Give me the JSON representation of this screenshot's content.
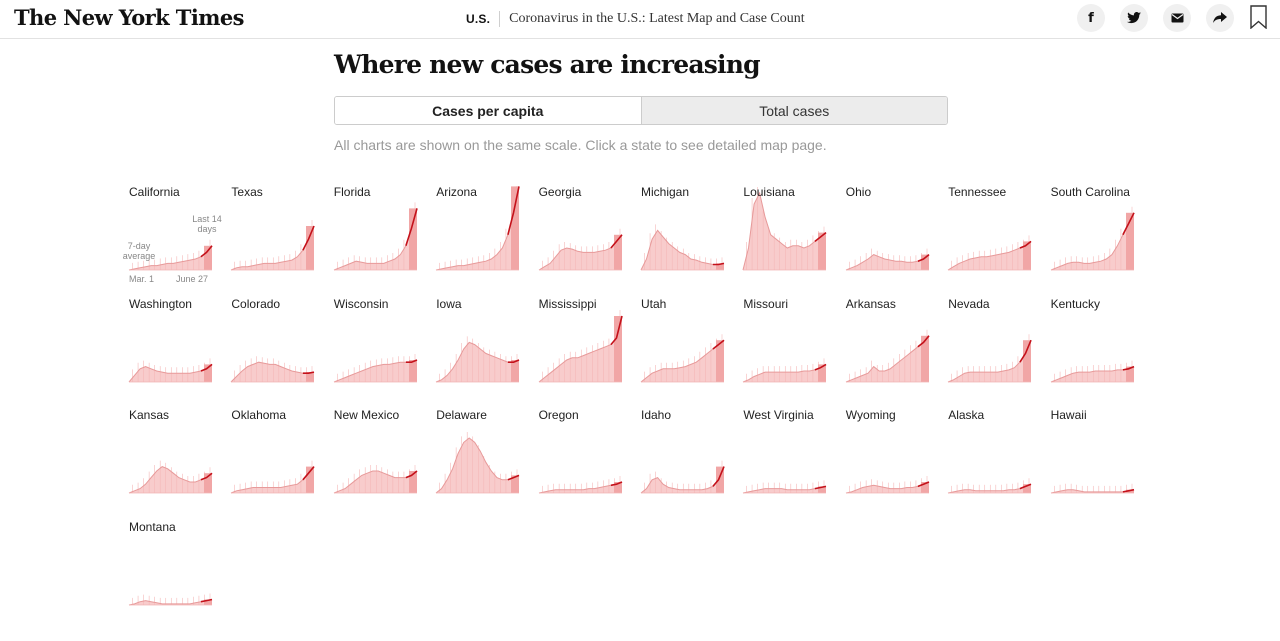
{
  "header": {
    "logo": "The New York Times",
    "section": "U.S.",
    "headline": "Coronavirus in the U.S.: Latest Map and Case Count",
    "share_icons": [
      "facebook-icon",
      "twitter-icon",
      "email-icon",
      "share-icon"
    ]
  },
  "main": {
    "title": "Where new cases are increasing",
    "toggle": {
      "options": [
        "Cases per capita",
        "Total cases"
      ],
      "selected": "Cases per capita"
    },
    "note": "All charts are shown on the same scale. Click a state to see detailed map page."
  },
  "annotations": {
    "avg_label": "7-day average",
    "recent_label": "Last 14 days",
    "start_label": "Mar. 1",
    "end_label": "June 27"
  },
  "colors": {
    "line": "#c4111a",
    "area": "#f7c3c3",
    "recent_band": "#f1a6a6",
    "bars": "#f5b7b7"
  },
  "chart_data": {
    "type": "area",
    "shared_scale": true,
    "x_range": [
      "Mar. 1",
      "June 27"
    ],
    "highlight_window": "Last 14 days",
    "states": [
      {
        "name": "California",
        "avg": [
          0,
          1,
          2,
          3,
          4,
          4,
          5,
          6,
          6,
          7,
          8,
          9,
          10,
          12,
          16,
          22
        ]
      },
      {
        "name": "Texas",
        "avg": [
          0,
          2,
          3,
          3,
          4,
          5,
          6,
          6,
          6,
          7,
          8,
          9,
          12,
          18,
          28,
          40
        ]
      },
      {
        "name": "Florida",
        "avg": [
          0,
          2,
          4,
          6,
          8,
          7,
          6,
          6,
          6,
          6,
          8,
          10,
          14,
          22,
          38,
          56
        ]
      },
      {
        "name": "Arizona",
        "avg": [
          0,
          1,
          2,
          3,
          4,
          4,
          5,
          6,
          7,
          8,
          10,
          14,
          20,
          32,
          52,
          76
        ]
      },
      {
        "name": "Georgia",
        "avg": [
          0,
          3,
          6,
          12,
          18,
          20,
          19,
          17,
          16,
          16,
          16,
          17,
          18,
          20,
          26,
          32
        ]
      },
      {
        "name": "Michigan",
        "avg": [
          0,
          10,
          28,
          36,
          30,
          24,
          20,
          16,
          14,
          10,
          9,
          7,
          6,
          5,
          5,
          6
        ]
      },
      {
        "name": "Louisiana",
        "avg": [
          0,
          20,
          60,
          70,
          48,
          32,
          28,
          24,
          20,
          22,
          22,
          20,
          22,
          26,
          30,
          34
        ]
      },
      {
        "name": "Ohio",
        "avg": [
          0,
          2,
          4,
          7,
          10,
          14,
          12,
          10,
          9,
          8,
          8,
          7,
          7,
          8,
          10,
          14
        ]
      },
      {
        "name": "Tennessee",
        "avg": [
          0,
          3,
          6,
          8,
          10,
          11,
          12,
          12,
          13,
          14,
          15,
          16,
          18,
          20,
          22,
          26
        ]
      },
      {
        "name": "South Carolina",
        "avg": [
          0,
          2,
          4,
          6,
          7,
          7,
          6,
          6,
          7,
          8,
          10,
          14,
          22,
          32,
          42,
          52
        ]
      },
      {
        "name": "Washington",
        "avg": [
          0,
          6,
          12,
          14,
          12,
          10,
          9,
          8,
          8,
          8,
          8,
          8,
          9,
          10,
          12,
          16
        ]
      },
      {
        "name": "Colorado",
        "avg": [
          0,
          5,
          10,
          14,
          16,
          18,
          17,
          16,
          16,
          14,
          12,
          10,
          9,
          8,
          8,
          9
        ]
      },
      {
        "name": "Wisconsin",
        "avg": [
          0,
          2,
          4,
          6,
          8,
          10,
          12,
          14,
          15,
          16,
          16,
          17,
          18,
          18,
          18,
          20
        ]
      },
      {
        "name": "Iowa",
        "avg": [
          0,
          2,
          6,
          12,
          20,
          30,
          36,
          34,
          30,
          26,
          24,
          22,
          20,
          18,
          18,
          20
        ]
      },
      {
        "name": "Mississippi",
        "avg": [
          0,
          4,
          8,
          12,
          16,
          20,
          22,
          22,
          24,
          26,
          28,
          30,
          32,
          34,
          40,
          60
        ]
      },
      {
        "name": "Utah",
        "avg": [
          0,
          4,
          8,
          10,
          12,
          12,
          12,
          13,
          14,
          16,
          18,
          22,
          26,
          30,
          34,
          38
        ]
      },
      {
        "name": "Missouri",
        "avg": [
          0,
          2,
          5,
          7,
          9,
          9,
          9,
          9,
          9,
          9,
          9,
          10,
          10,
          11,
          13,
          16
        ]
      },
      {
        "name": "Arkansas",
        "avg": [
          0,
          2,
          4,
          6,
          8,
          14,
          10,
          10,
          12,
          16,
          20,
          24,
          28,
          32,
          36,
          42
        ]
      },
      {
        "name": "Nevada",
        "avg": [
          0,
          2,
          5,
          8,
          9,
          9,
          9,
          9,
          9,
          9,
          10,
          11,
          13,
          18,
          26,
          38
        ]
      },
      {
        "name": "Kentucky",
        "avg": [
          0,
          2,
          4,
          6,
          8,
          9,
          9,
          9,
          10,
          10,
          10,
          10,
          11,
          11,
          12,
          14
        ]
      },
      {
        "name": "Kansas",
        "avg": [
          0,
          2,
          4,
          8,
          14,
          20,
          24,
          22,
          18,
          14,
          12,
          10,
          10,
          12,
          14,
          18
        ]
      },
      {
        "name": "Oklahoma",
        "avg": [
          0,
          2,
          3,
          4,
          5,
          5,
          5,
          5,
          5,
          5,
          6,
          7,
          8,
          12,
          18,
          24
        ]
      },
      {
        "name": "New Mexico",
        "avg": [
          0,
          2,
          4,
          8,
          12,
          16,
          18,
          20,
          20,
          18,
          16,
          14,
          14,
          14,
          16,
          20
        ]
      },
      {
        "name": "Delaware",
        "avg": [
          0,
          4,
          12,
          22,
          36,
          46,
          50,
          46,
          38,
          28,
          20,
          14,
          12,
          12,
          14,
          16
        ]
      },
      {
        "name": "Oregon",
        "avg": [
          0,
          1,
          2,
          3,
          3,
          3,
          3,
          3,
          3,
          4,
          4,
          5,
          6,
          7,
          8,
          10
        ]
      },
      {
        "name": "Idaho",
        "avg": [
          0,
          4,
          12,
          14,
          8,
          5,
          4,
          3,
          3,
          3,
          3,
          3,
          4,
          6,
          12,
          24
        ]
      },
      {
        "name": "West Virginia",
        "avg": [
          0,
          1,
          2,
          3,
          4,
          4,
          4,
          4,
          3,
          3,
          3,
          3,
          3,
          4,
          5,
          6
        ]
      },
      {
        "name": "Wyoming",
        "avg": [
          0,
          1,
          3,
          5,
          6,
          7,
          6,
          5,
          4,
          4,
          4,
          5,
          5,
          6,
          8,
          10
        ]
      },
      {
        "name": "Alaska",
        "avg": [
          0,
          1,
          2,
          3,
          3,
          2,
          2,
          2,
          2,
          2,
          2,
          3,
          3,
          4,
          6,
          8
        ]
      },
      {
        "name": "Hawaii",
        "avg": [
          0,
          1,
          2,
          3,
          3,
          2,
          1,
          1,
          1,
          1,
          1,
          1,
          1,
          1,
          2,
          3
        ]
      },
      {
        "name": "Montana",
        "avg": [
          0,
          1,
          3,
          4,
          3,
          2,
          1,
          1,
          1,
          1,
          1,
          1,
          2,
          3,
          4,
          5
        ]
      }
    ]
  }
}
